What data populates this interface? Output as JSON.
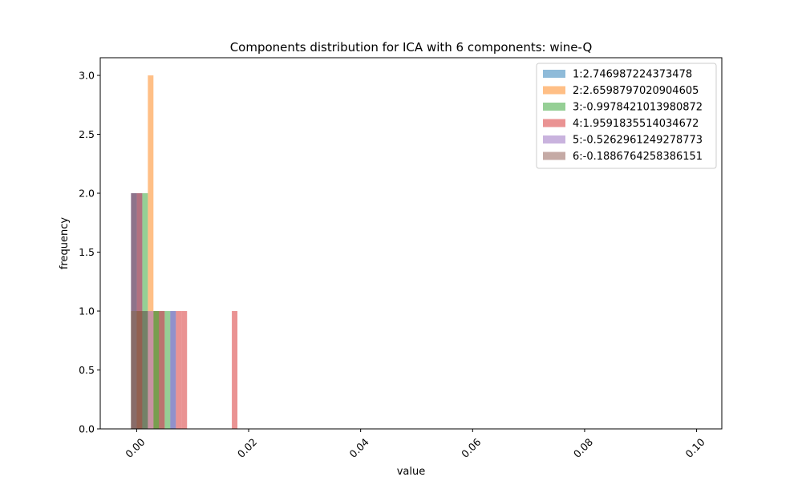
{
  "chart_data": {
    "type": "bar",
    "title": "Components distribution for ICA with 6 components: wine-Q",
    "xlabel": "value",
    "ylabel": "frequency",
    "xlim": [
      -0.0065,
      0.1045
    ],
    "ylim": [
      0,
      3.15
    ],
    "xticks": [
      0.0,
      0.02,
      0.04,
      0.06,
      0.08,
      0.1
    ],
    "xtick_labels": [
      "0.00",
      "0.02",
      "0.04",
      "0.06",
      "0.08",
      "0.10"
    ],
    "yticks": [
      0.0,
      0.5,
      1.0,
      1.5,
      2.0,
      2.5,
      3.0
    ],
    "ytick_labels": [
      "0.0",
      "0.5",
      "1.0",
      "1.5",
      "2.0",
      "2.5",
      "3.0"
    ],
    "grid": false,
    "legend_position": "top-right",
    "series": [
      {
        "name": "1:2.746987224373478",
        "color": "#1f77b4",
        "bars": [
          {
            "x0": -0.001,
            "x1": 0.001,
            "value": 2
          },
          {
            "x0": 0.001,
            "x1": 0.002,
            "value": 1
          },
          {
            "x0": 0.003,
            "x1": 0.004,
            "value": 1
          },
          {
            "x0": 0.006,
            "x1": 0.007,
            "value": 1
          }
        ]
      },
      {
        "name": "2:2.6598797020904605",
        "color": "#ff7f0e",
        "bars": [
          {
            "x0": -0.001,
            "x1": 0.0,
            "value": 1
          },
          {
            "x0": 0.002,
            "x1": 0.003,
            "value": 3
          },
          {
            "x0": 0.003,
            "x1": 0.004,
            "value": 1
          }
        ]
      },
      {
        "name": "3:-0.9978421013980872",
        "color": "#2ca02c",
        "bars": [
          {
            "x0": -0.001,
            "x1": 0.0,
            "value": 1
          },
          {
            "x0": 0.0,
            "x1": 0.001,
            "value": 1
          },
          {
            "x0": 0.001,
            "x1": 0.002,
            "value": 2
          },
          {
            "x0": 0.003,
            "x1": 0.004,
            "value": 1
          },
          {
            "x0": 0.005,
            "x1": 0.006,
            "value": 1
          }
        ]
      },
      {
        "name": "4:1.9591835514034672",
        "color": "#d62728",
        "bars": [
          {
            "x0": 0.0,
            "x1": 0.001,
            "value": 2
          },
          {
            "x0": 0.004,
            "x1": 0.005,
            "value": 1
          },
          {
            "x0": 0.007,
            "x1": 0.008,
            "value": 1
          },
          {
            "x0": 0.008,
            "x1": 0.009,
            "value": 1
          },
          {
            "x0": 0.017,
            "x1": 0.018,
            "value": 1
          }
        ]
      },
      {
        "name": "5:-0.5262961249278773",
        "color": "#9467bd",
        "bars": [
          {
            "x0": -0.001,
            "x1": 0.0,
            "value": 2
          },
          {
            "x0": 0.002,
            "x1": 0.003,
            "value": 1
          },
          {
            "x0": 0.006,
            "x1": 0.007,
            "value": 1
          }
        ]
      },
      {
        "name": "6:-0.1886764258386151",
        "color": "#8c564b",
        "bars": [
          {
            "x0": -0.001,
            "x1": 0.0,
            "value": 2
          },
          {
            "x0": 0.0,
            "x1": 0.001,
            "value": 1
          },
          {
            "x0": 0.001,
            "x1": 0.002,
            "value": 1
          },
          {
            "x0": 0.004,
            "x1": 0.005,
            "value": 1
          }
        ]
      }
    ]
  }
}
